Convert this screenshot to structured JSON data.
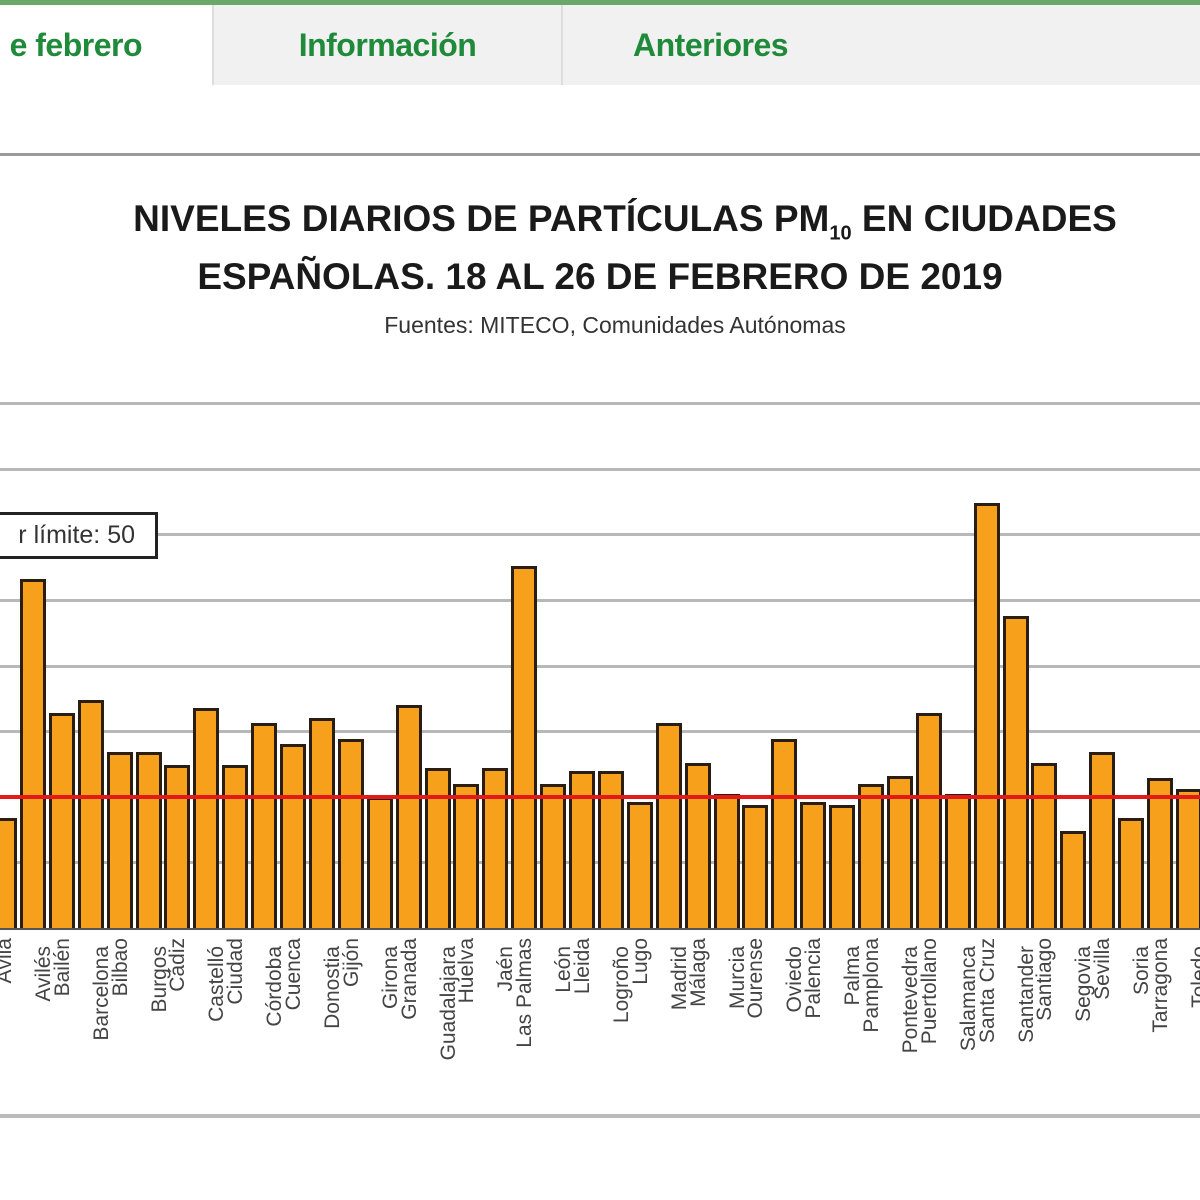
{
  "nav": {
    "tabs": [
      {
        "label": "e febrero",
        "active": true
      },
      {
        "label": "Información",
        "active": false
      },
      {
        "label": "Anteriores",
        "active": false
      }
    ]
  },
  "chart_data": {
    "type": "bar",
    "title_line1_pre": "NIVELES DIARIOS DE PARTÍCULAS PM",
    "title_sub": "10",
    "title_line1_post": " EN CIUDADES",
    "title_line2": "ESPAÑOLAS. 18 AL 26 DE FEBRERO DE 2019",
    "subtitle": "Fuentes: MITECO, Comunidades Autónomas",
    "legend": "r límite: 50",
    "limit_value": 50,
    "ylim": [
      0,
      200
    ],
    "grid": true,
    "categories": [
      "Ávila",
      "Avilés",
      "Bailén",
      "Barcelona",
      "Bilbao",
      "Burgos",
      "Cádiz",
      "Castelló",
      "Ciudad",
      "Córdoba",
      "Cuenca",
      "Donostia",
      "Gijón",
      "Girona",
      "Granada",
      "Guadalajara",
      "Huelva",
      "Jaén",
      "Las Palmas",
      "León",
      "Lleida",
      "Logroño",
      "Lugo",
      "Madrid",
      "Málaga",
      "Murcia",
      "Ourense",
      "Oviedo",
      "Palencia",
      "Palma",
      "Pamplona",
      "Pontevedra",
      "Puertollano",
      "Salamanca",
      "Santa Cruz",
      "Santander",
      "Santiago",
      "Segovia",
      "Sevilla",
      "Soria",
      "Tarragona",
      "Toledo"
    ],
    "values": [
      42,
      133,
      82,
      87,
      67,
      67,
      62,
      84,
      62,
      78,
      70,
      80,
      72,
      50,
      85,
      61,
      55,
      61,
      138,
      55,
      60,
      60,
      48,
      78,
      63,
      51,
      47,
      72,
      48,
      47,
      55,
      58,
      82,
      51,
      162,
      119,
      63,
      37,
      67,
      42,
      57,
      53
    ],
    "colors": {
      "bar": "#f7a01c",
      "limit": "#e31a1a"
    }
  }
}
